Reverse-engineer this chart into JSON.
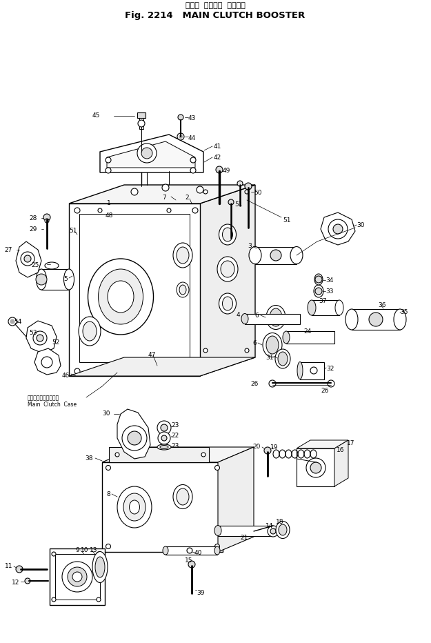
{
  "title_line1": "メイン  クラッチ  ブースタ",
  "title_line2": "Fig. 2214   MAIN CLUTCH BOOSTER",
  "background_color": "#ffffff",
  "line_color": "#000000",
  "fig_width": 6.25,
  "fig_height": 9.32,
  "dpi": 100,
  "main_clutch_case_jp": "メインクラッチケース",
  "main_clutch_case_en": "Main  Clutch  Case"
}
